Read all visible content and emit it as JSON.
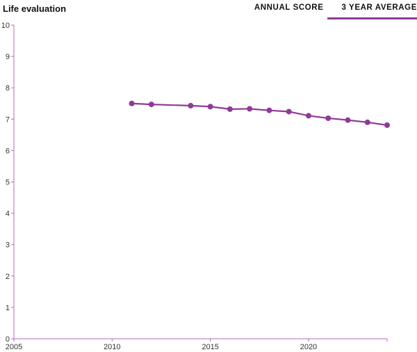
{
  "header": {
    "title": "Life evaluation",
    "tabs": [
      {
        "label": "ANNUAL SCORE",
        "active": false
      },
      {
        "label": "3 YEAR AVERAGE",
        "active": true
      }
    ]
  },
  "colors": {
    "series": "#8e3a96",
    "axis": "#b56ab9"
  },
  "chart_data": {
    "type": "line",
    "title": "Life evaluation",
    "xlabel": "",
    "ylabel": "",
    "xlim": [
      2005,
      2024
    ],
    "ylim": [
      0,
      10
    ],
    "x_ticks": [
      2005,
      2010,
      2015,
      2020
    ],
    "y_ticks": [
      0,
      1,
      2,
      3,
      4,
      5,
      6,
      7,
      8,
      9,
      10
    ],
    "grid": false,
    "series": [
      {
        "x": [
          2011,
          2012,
          2014,
          2015,
          2016,
          2017,
          2018,
          2019,
          2020,
          2021,
          2022,
          2023,
          2024
        ],
        "values": [
          7.5,
          7.47,
          7.43,
          7.4,
          7.32,
          7.33,
          7.28,
          7.24,
          7.11,
          7.03,
          6.97,
          6.9,
          6.81
        ]
      }
    ]
  }
}
